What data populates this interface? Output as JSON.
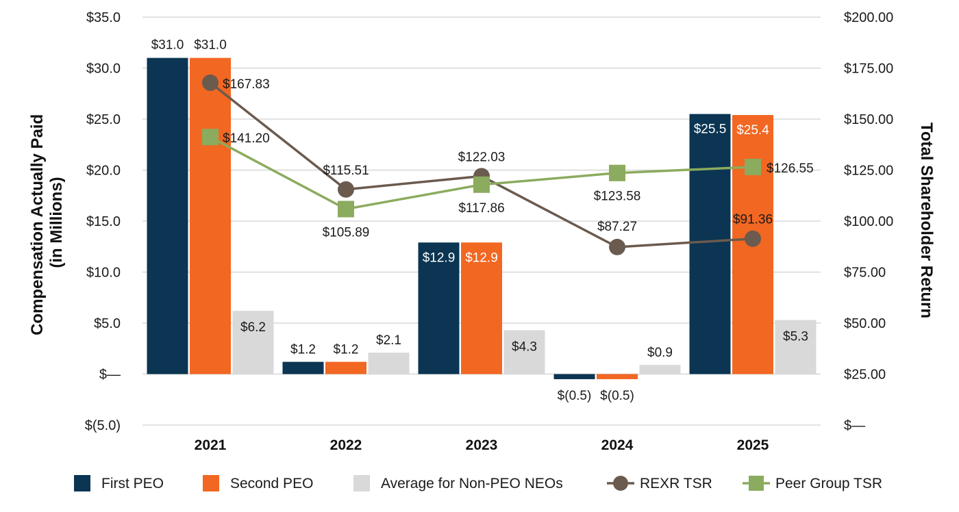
{
  "chart_data": {
    "type": "bar+line",
    "categories": [
      "2021",
      "2022",
      "2023",
      "2024",
      "2025"
    ],
    "bar_series": [
      {
        "name": "First PEO",
        "color": "#0b3552",
        "values": [
          31.0,
          1.2,
          12.9,
          -0.5,
          25.5
        ],
        "labels": [
          "$31.0",
          "$1.2",
          "$12.9",
          "$(0.5)",
          "$25.5"
        ]
      },
      {
        "name": "Second PEO",
        "color": "#f26722",
        "values": [
          31.0,
          1.2,
          12.9,
          -0.5,
          25.4
        ],
        "labels": [
          "$31.0",
          "$1.2",
          "$12.9",
          "$(0.5)",
          "$25.4"
        ]
      },
      {
        "name": "Average for Non-PEO NEOs",
        "color": "#d9d9d9",
        "values": [
          6.2,
          2.1,
          4.3,
          0.9,
          5.3
        ],
        "labels": [
          "$6.2",
          "$2.1",
          "$4.3",
          "$0.9",
          "$5.3"
        ]
      }
    ],
    "line_series": [
      {
        "name": "REXR TSR",
        "color": "#6b5a4e",
        "marker": "circle",
        "values": [
          167.83,
          115.51,
          122.03,
          87.27,
          91.36
        ],
        "labels": [
          "$167.83",
          "$115.51",
          "$122.03",
          "$87.27",
          "$91.36"
        ]
      },
      {
        "name": "Peer Group TSR",
        "color": "#8bab5e",
        "marker": "square",
        "values": [
          141.2,
          105.89,
          117.86,
          123.58,
          126.55
        ],
        "labels": [
          "$141.20",
          "$105.89",
          "$117.86",
          "$123.58",
          "$126.55"
        ]
      }
    ],
    "y_left": {
      "label_line1": "Compensation Actually Paid",
      "label_line2": "(in Millions)",
      "range": [
        -5,
        35
      ],
      "ticks": [
        {
          "value": 35,
          "label": "$35.0"
        },
        {
          "value": 30,
          "label": "$30.0"
        },
        {
          "value": 25,
          "label": "$25.0"
        },
        {
          "value": 20,
          "label": "$20.0"
        },
        {
          "value": 15,
          "label": "$15.0"
        },
        {
          "value": 10,
          "label": "$10.0"
        },
        {
          "value": 5,
          "label": "$5.0"
        },
        {
          "value": 0,
          "label": "$—"
        },
        {
          "value": -5,
          "label": "$(5.0)"
        }
      ]
    },
    "y_right": {
      "label": "Total Shareholder Return",
      "range": [
        0,
        200
      ],
      "ticks": [
        {
          "value": 200,
          "label": "$200.00"
        },
        {
          "value": 175,
          "label": "$175.00"
        },
        {
          "value": 150,
          "label": "$150.00"
        },
        {
          "value": 125,
          "label": "$125.00"
        },
        {
          "value": 100,
          "label": "$100.00"
        },
        {
          "value": 75,
          "label": "$75.00"
        },
        {
          "value": 50,
          "label": "$50.00"
        },
        {
          "value": 25,
          "label": "$25.00"
        },
        {
          "value": 0,
          "label": "$—"
        }
      ]
    },
    "grid": true,
    "legend_position": "bottom"
  }
}
